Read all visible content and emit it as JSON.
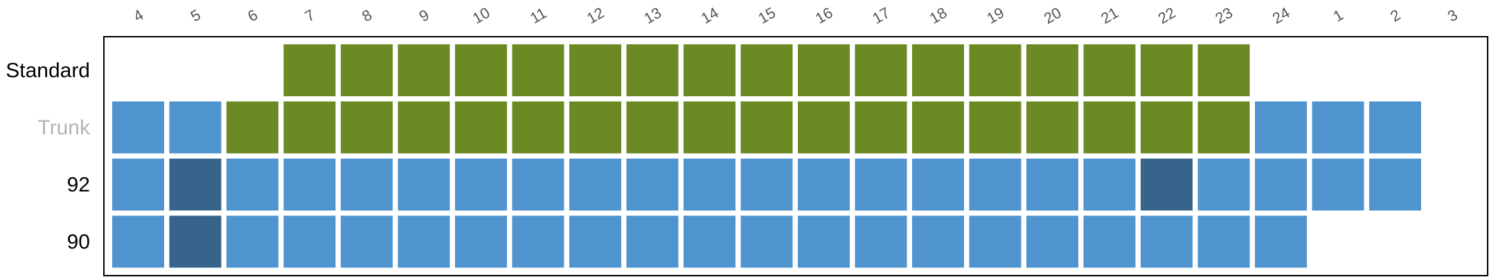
{
  "chart_data": {
    "type": "heatmap",
    "title": "",
    "xlabel": "",
    "ylabel": "",
    "columns": [
      "4",
      "5",
      "6",
      "7",
      "8",
      "9",
      "10",
      "11",
      "12",
      "13",
      "14",
      "15",
      "16",
      "17",
      "18",
      "19",
      "20",
      "21",
      "22",
      "23",
      "24",
      "1",
      "2",
      "3"
    ],
    "rows": [
      {
        "label": "Standard",
        "label_color": "#000000",
        "cells": [
          null,
          null,
          null,
          "green",
          "green",
          "green",
          "green",
          "green",
          "green",
          "green",
          "green",
          "green",
          "green",
          "green",
          "green",
          "green",
          "green",
          "green",
          "green",
          "green",
          null,
          null,
          null,
          null
        ]
      },
      {
        "label": "Trunk",
        "label_color": "#b3b3b3",
        "cells": [
          "blue",
          "blue",
          "green",
          "green",
          "green",
          "green",
          "green",
          "green",
          "green",
          "green",
          "green",
          "green",
          "green",
          "green",
          "green",
          "green",
          "green",
          "green",
          "green",
          "green",
          "blue",
          "blue",
          "blue",
          null
        ]
      },
      {
        "label": "92",
        "label_color": "#000000",
        "cells": [
          "blue",
          "dark",
          "blue",
          "blue",
          "blue",
          "blue",
          "blue",
          "blue",
          "blue",
          "blue",
          "blue",
          "blue",
          "blue",
          "blue",
          "blue",
          "blue",
          "blue",
          "blue",
          "dark",
          "blue",
          "blue",
          "blue",
          "blue",
          null
        ]
      },
      {
        "label": "90",
        "label_color": "#000000",
        "cells": [
          "blue",
          "dark",
          "blue",
          "blue",
          "blue",
          "blue",
          "blue",
          "blue",
          "blue",
          "blue",
          "blue",
          "blue",
          "blue",
          "blue",
          "blue",
          "blue",
          "blue",
          "blue",
          "blue",
          "blue",
          "blue",
          null,
          null,
          null
        ]
      }
    ],
    "colors": {
      "green": "#6b8a23",
      "blue": "#4f94cf",
      "dark": "#36648b"
    },
    "grid": false,
    "legend": "none"
  }
}
